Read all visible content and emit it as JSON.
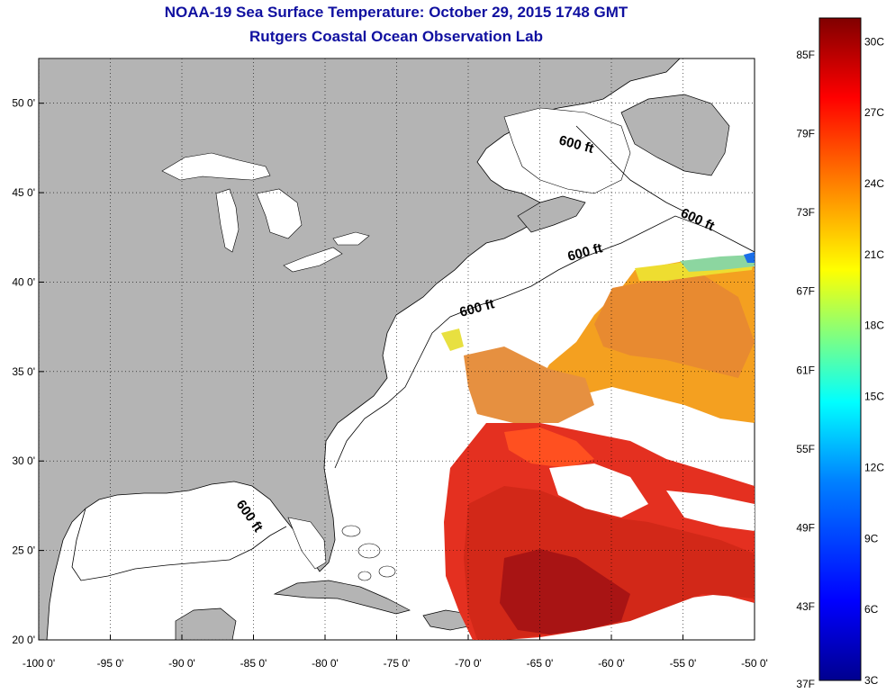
{
  "header": {
    "title_line1": "NOAA-19 Sea Surface Temperature:  October 29, 2015 1748 GMT",
    "title_line2": "Rutgers Coastal Ocean Observation Lab"
  },
  "map": {
    "lon_range": [
      -100,
      -50
    ],
    "lat_range": [
      20,
      52.5
    ],
    "lon_ticks": [
      -100,
      -95,
      -90,
      -85,
      -80,
      -75,
      -70,
      -65,
      -60,
      -55,
      -50
    ],
    "lat_ticks": [
      20,
      25,
      30,
      35,
      40,
      45,
      50
    ],
    "lon_tick_labels": [
      "-100 0'",
      "-95 0'",
      "-90 0'",
      "-85 0'",
      "-80 0'",
      "-75 0'",
      "-70 0'",
      "-65 0'",
      "-60 0'",
      "-55 0'",
      "-50 0'"
    ],
    "lat_tick_labels": [
      "20 0'",
      "25 0'",
      "30 0'",
      "35 0'",
      "40 0'",
      "45 0'",
      "50 0'"
    ],
    "grid": "dotted",
    "land_color": "#b4b4b4",
    "contour_labels": [
      "600 ft",
      "600 ft",
      "600 ft",
      "600 ft",
      "600 ft"
    ]
  },
  "colorbar": {
    "celsius_ticks": [
      "30C",
      "27C",
      "24C",
      "21C",
      "18C",
      "15C",
      "12C",
      "9C",
      "6C",
      "3C"
    ],
    "fahrenheit_ticks": [
      "85F",
      "79F",
      "73F",
      "67F",
      "61F",
      "55F",
      "49F",
      "43F",
      "37F"
    ],
    "range_c": [
      3,
      31
    ],
    "colors": [
      "#00008f",
      "#0000ff",
      "#0080ff",
      "#00ffff",
      "#80ff80",
      "#ffff00",
      "#ff8000",
      "#ff0000",
      "#800000"
    ]
  }
}
